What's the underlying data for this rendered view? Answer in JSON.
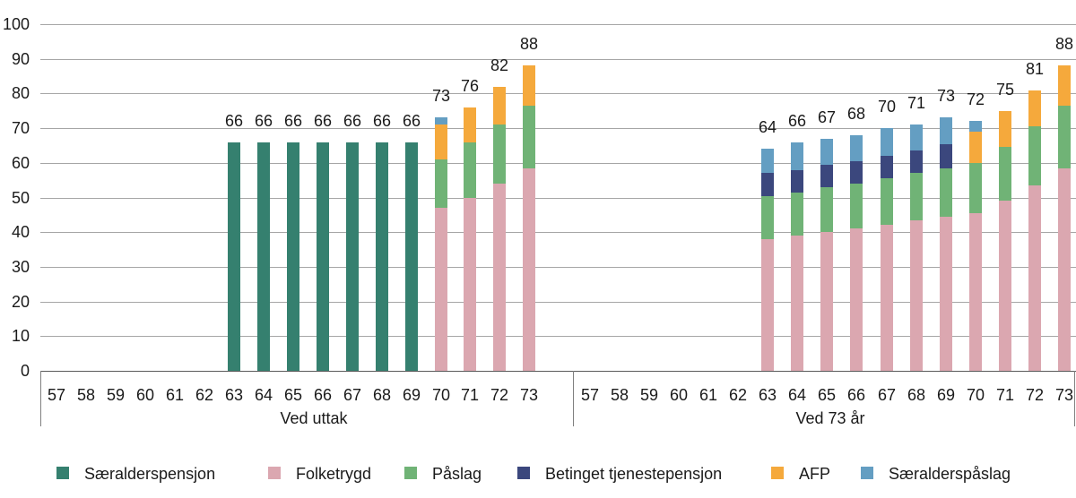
{
  "chart_data": {
    "type": "bar",
    "stacked": true,
    "title": "",
    "xlabel": "",
    "ylabel": "",
    "ylim": [
      0,
      100
    ],
    "yticks": [
      "0",
      "10",
      "20",
      "30",
      "40",
      "50",
      "60",
      "70",
      "80",
      "90",
      "100"
    ],
    "grid": true,
    "legend_position": "bottom",
    "series_colors": {
      "Særalderspensjon": "#35806F",
      "Folketrygd": "#DBA7B0",
      "Påslag": "#70B376",
      "Betinget tjenestepensjon": "#3B477D",
      "AFP": "#F5A93C",
      "Særalderspåslag": "#649EC2"
    },
    "panels": [
      {
        "label": "Ved uttak",
        "categories": [
          "57",
          "58",
          "59",
          "60",
          "61",
          "62",
          "63",
          "64",
          "65",
          "66",
          "67",
          "68",
          "69",
          "70",
          "71",
          "72",
          "73"
        ],
        "bars": [
          {
            "category": "63",
            "total": 66,
            "label": "66",
            "segments": [
              {
                "series": "Særalderspensjon",
                "value": 66
              }
            ]
          },
          {
            "category": "64",
            "total": 66,
            "label": "66",
            "segments": [
              {
                "series": "Særalderspensjon",
                "value": 66
              }
            ]
          },
          {
            "category": "65",
            "total": 66,
            "label": "66",
            "segments": [
              {
                "series": "Særalderspensjon",
                "value": 66
              }
            ]
          },
          {
            "category": "66",
            "total": 66,
            "label": "66",
            "segments": [
              {
                "series": "Særalderspensjon",
                "value": 66
              }
            ]
          },
          {
            "category": "67",
            "total": 66,
            "label": "66",
            "segments": [
              {
                "series": "Særalderspensjon",
                "value": 66
              }
            ]
          },
          {
            "category": "68",
            "total": 66,
            "label": "66",
            "segments": [
              {
                "series": "Særalderspensjon",
                "value": 66
              }
            ]
          },
          {
            "category": "69",
            "total": 66,
            "label": "66",
            "segments": [
              {
                "series": "Særalderspensjon",
                "value": 66
              }
            ]
          },
          {
            "category": "70",
            "total": 73,
            "label": "73",
            "segments": [
              {
                "series": "Folketrygd",
                "value": 47
              },
              {
                "series": "Påslag",
                "value": 14
              },
              {
                "series": "AFP",
                "value": 10
              },
              {
                "series": "Særalderspåslag",
                "value": 2
              }
            ]
          },
          {
            "category": "71",
            "total": 76,
            "label": "76",
            "segments": [
              {
                "series": "Folketrygd",
                "value": 50
              },
              {
                "series": "Påslag",
                "value": 16
              },
              {
                "series": "AFP",
                "value": 10
              }
            ]
          },
          {
            "category": "72",
            "total": 82,
            "label": "82",
            "segments": [
              {
                "series": "Folketrygd",
                "value": 54
              },
              {
                "series": "Påslag",
                "value": 17
              },
              {
                "series": "AFP",
                "value": 11
              }
            ]
          },
          {
            "category": "73",
            "total": 88,
            "label": "88",
            "segments": [
              {
                "series": "Folketrygd",
                "value": 58.5
              },
              {
                "series": "Påslag",
                "value": 18
              },
              {
                "series": "AFP",
                "value": 11.5
              }
            ]
          }
        ]
      },
      {
        "label": "Ved 73 år",
        "categories": [
          "57",
          "58",
          "59",
          "60",
          "61",
          "62",
          "63",
          "64",
          "65",
          "66",
          "67",
          "68",
          "69",
          "70",
          "71",
          "72",
          "73"
        ],
        "bars": [
          {
            "category": "63",
            "total": 64,
            "label": "64",
            "segments": [
              {
                "series": "Folketrygd",
                "value": 38
              },
              {
                "series": "Påslag",
                "value": 12.5
              },
              {
                "series": "Betinget tjenestepensjon",
                "value": 6.5
              },
              {
                "series": "Særalderspåslag",
                "value": 7
              }
            ]
          },
          {
            "category": "64",
            "total": 66,
            "label": "66",
            "segments": [
              {
                "series": "Folketrygd",
                "value": 39
              },
              {
                "series": "Påslag",
                "value": 12.5
              },
              {
                "series": "Betinget tjenestepensjon",
                "value": 6.5
              },
              {
                "series": "Særalderspåslag",
                "value": 8
              }
            ]
          },
          {
            "category": "65",
            "total": 67,
            "label": "67",
            "segments": [
              {
                "series": "Folketrygd",
                "value": 40
              },
              {
                "series": "Påslag",
                "value": 13
              },
              {
                "series": "Betinget tjenestepensjon",
                "value": 6.5
              },
              {
                "series": "Særalderspåslag",
                "value": 7.5
              }
            ]
          },
          {
            "category": "66",
            "total": 68,
            "label": "68",
            "segments": [
              {
                "series": "Folketrygd",
                "value": 41
              },
              {
                "series": "Påslag",
                "value": 13
              },
              {
                "series": "Betinget tjenestepensjon",
                "value": 6.5
              },
              {
                "series": "Særalderspåslag",
                "value": 7.5
              }
            ]
          },
          {
            "category": "67",
            "total": 70,
            "label": "70",
            "segments": [
              {
                "series": "Folketrygd",
                "value": 42
              },
              {
                "series": "Påslag",
                "value": 13.5
              },
              {
                "series": "Betinget tjenestepensjon",
                "value": 6.5
              },
              {
                "series": "Særalderspåslag",
                "value": 8
              }
            ]
          },
          {
            "category": "68",
            "total": 71,
            "label": "71",
            "segments": [
              {
                "series": "Folketrygd",
                "value": 43.5
              },
              {
                "series": "Påslag",
                "value": 13.5
              },
              {
                "series": "Betinget tjenestepensjon",
                "value": 6.5
              },
              {
                "series": "Særalderspåslag",
                "value": 7.5
              }
            ]
          },
          {
            "category": "69",
            "total": 73,
            "label": "73",
            "segments": [
              {
                "series": "Folketrygd",
                "value": 44.5
              },
              {
                "series": "Påslag",
                "value": 14
              },
              {
                "series": "Betinget tjenestepensjon",
                "value": 7
              },
              {
                "series": "Særalderspåslag",
                "value": 7.5
              }
            ]
          },
          {
            "category": "70",
            "total": 72,
            "label": "72",
            "segments": [
              {
                "series": "Folketrygd",
                "value": 45.5
              },
              {
                "series": "Påslag",
                "value": 14.5
              },
              {
                "series": "AFP",
                "value": 9
              },
              {
                "series": "Særalderspåslag",
                "value": 3
              }
            ]
          },
          {
            "category": "71",
            "total": 75,
            "label": "75",
            "segments": [
              {
                "series": "Folketrygd",
                "value": 49
              },
              {
                "series": "Påslag",
                "value": 15.5
              },
              {
                "series": "AFP",
                "value": 10.5
              }
            ]
          },
          {
            "category": "72",
            "total": 81,
            "label": "81",
            "segments": [
              {
                "series": "Folketrygd",
                "value": 53.5
              },
              {
                "series": "Påslag",
                "value": 17
              },
              {
                "series": "AFP",
                "value": 10.5
              }
            ]
          },
          {
            "category": "73",
            "total": 88,
            "label": "88",
            "segments": [
              {
                "series": "Folketrygd",
                "value": 58.5
              },
              {
                "series": "Påslag",
                "value": 18
              },
              {
                "series": "AFP",
                "value": 11.5
              }
            ]
          }
        ]
      }
    ]
  },
  "legend": {
    "items": [
      {
        "label": "Særalderspensjon",
        "color": "#35806F"
      },
      {
        "label": "Folketrygd",
        "color": "#DBA7B0"
      },
      {
        "label": "Påslag",
        "color": "#70B376"
      },
      {
        "label": "Betinget tjenestepensjon",
        "color": "#3B477D"
      },
      {
        "label": "AFP",
        "color": "#F5A93C"
      },
      {
        "label": "Særalderspåslag",
        "color": "#649EC2"
      }
    ]
  },
  "colors": {
    "background": "#FFFFFF",
    "gridline": "#A6A6A6",
    "axis": "#595959",
    "panel_border": "#808080",
    "text": "#1A1A1A"
  }
}
